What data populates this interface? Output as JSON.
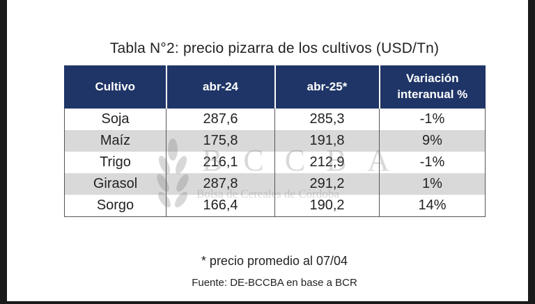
{
  "caption": "Tabla N°2: precio pizarra de los cultivos (USD/Tn)",
  "table": {
    "headers": [
      "Cultivo",
      "abr-24",
      "abr-25*",
      "Variación interanual %"
    ],
    "header_line1_last": "Variación",
    "header_line2_last": "interanual %",
    "rows": [
      [
        "Soja",
        "287,6",
        "285,3",
        "-1%"
      ],
      [
        "Maíz",
        "175,8",
        "191,8",
        "9%"
      ],
      [
        "Trigo",
        "216,1",
        "212,9",
        "-1%"
      ],
      [
        "Girasol",
        "287,8",
        "291,2",
        "1%"
      ],
      [
        "Sorgo",
        "166,4",
        "190,2",
        "14%"
      ]
    ]
  },
  "watermark": {
    "text": "BCCBA",
    "subtext": "Bolsa de Cereales de Córdoba"
  },
  "footnote": "* precio promedio al 07/04",
  "source": "Fuente: DE-BCCBA en base a BCR",
  "colors": {
    "header_bg": "#1f3567",
    "header_text": "#ffffff",
    "stripe": "#d9d9d9"
  }
}
